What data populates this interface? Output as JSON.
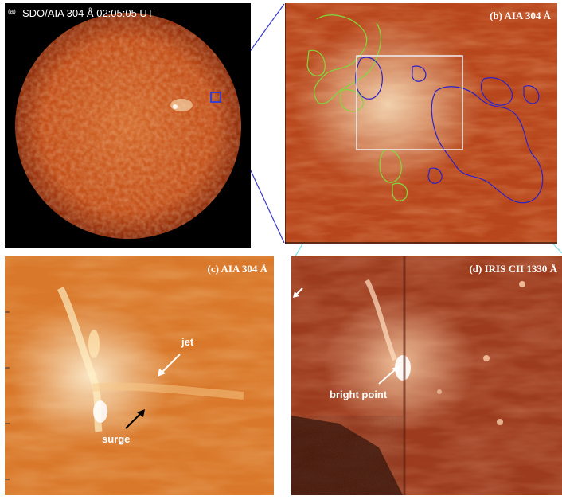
{
  "panel_a": {
    "tag": "(a)",
    "title": "SDO/AIA 304 Å 02:05:05 UT"
  },
  "panel_b": {
    "title": "(b) AIA 304 Å"
  },
  "panel_c": {
    "title": "(c) AIA 304 Å",
    "jet_label": "jet",
    "surge_label": "surge"
  },
  "panel_d": {
    "title": "(d) IRIS CII 1330 Å",
    "bright_point_label": "bright point"
  },
  "colors": {
    "disk": "#c4501a",
    "panel_b_bg": "#b8461c",
    "panel_c_bg": "#d9782a",
    "panel_d_bg": "#9c3b1e",
    "contour_green": "#7ddc3a",
    "contour_blue": "#2a22c8",
    "zoom_lines": "#3a3ad0",
    "zoom_lines_cyan": "#8fe6e6"
  }
}
